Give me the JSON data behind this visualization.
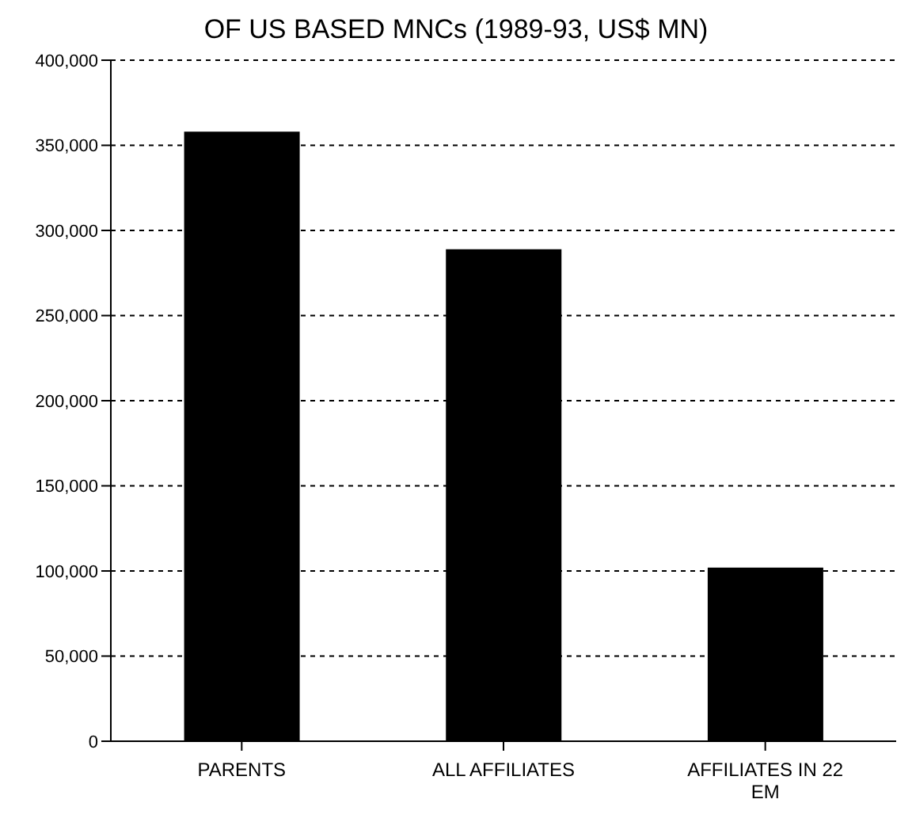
{
  "chart_data": {
    "type": "bar",
    "title": "OF US BASED MNCs (1989-93, US$ MN)",
    "categories": [
      "PARENTS",
      "ALL AFFILIATES",
      "AFFILIATES IN 22 EM"
    ],
    "values": [
      358000,
      289000,
      102000
    ],
    "color": "#000000",
    "ylim": [
      0,
      400000
    ],
    "yticks": [
      0,
      {
        "value": 50000,
        "label": "50,000"
      },
      {
        "value": 100000,
        "label": "100,000"
      },
      {
        "value": 150000,
        "label": "150,000"
      },
      {
        "value": 200000,
        "label": "200,000"
      },
      {
        "value": 250000,
        "label": "250,000"
      },
      {
        "value": 300000,
        "label": "300,000"
      },
      {
        "value": 350000,
        "label": "350,000"
      },
      {
        "value": 400000,
        "label": "400,000"
      }
    ],
    "grid": "y",
    "legend": false
  }
}
